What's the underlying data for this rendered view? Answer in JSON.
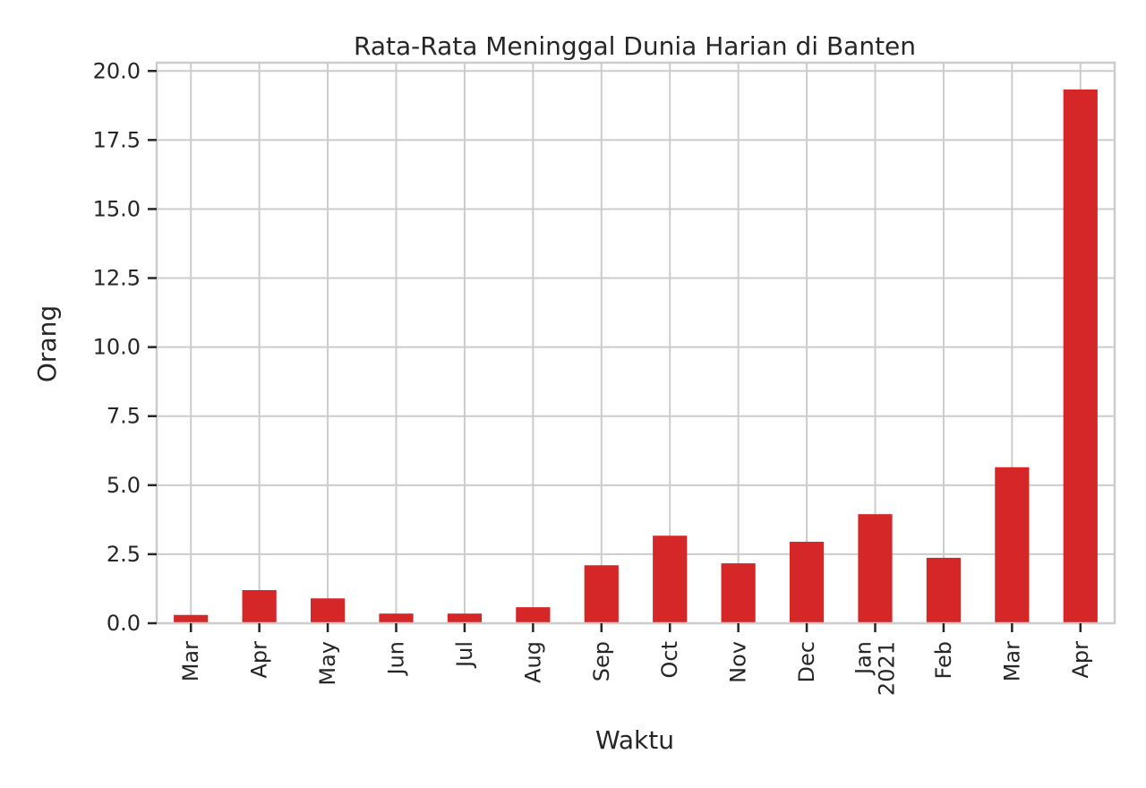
{
  "chart_data": {
    "type": "bar",
    "title": "Rata-Rata Meninggal Dunia Harian di Banten",
    "xlabel": "Waktu",
    "ylabel": "Orang",
    "categories": [
      [
        "Mar"
      ],
      [
        "Apr"
      ],
      [
        "May"
      ],
      [
        "Jun"
      ],
      [
        "Jul"
      ],
      [
        "Aug"
      ],
      [
        "Sep"
      ],
      [
        "Oct"
      ],
      [
        "Nov"
      ],
      [
        "Dec"
      ],
      [
        "Jan",
        "2021"
      ],
      [
        "Feb"
      ],
      [
        "Mar"
      ],
      [
        "Apr"
      ]
    ],
    "series": [
      {
        "values": [
          0.3,
          1.2,
          0.9,
          0.35,
          0.35,
          0.58,
          2.1,
          3.17,
          2.17,
          2.95,
          3.95,
          2.37,
          5.65,
          19.33
        ]
      }
    ],
    "ylim": [
      0,
      20.3
    ],
    "yticks": [
      "0.0",
      "2.5",
      "5.0",
      "7.5",
      "10.0",
      "12.5",
      "15.0",
      "17.5",
      "20.0"
    ],
    "ytick_values": [
      0,
      2.5,
      5,
      7.5,
      10,
      12.5,
      15,
      17.5,
      20
    ],
    "grid": true,
    "colors": {
      "bar": "#d62728",
      "grid": "#cccccc",
      "spine": "#cccccc",
      "tick": "#262626"
    }
  }
}
